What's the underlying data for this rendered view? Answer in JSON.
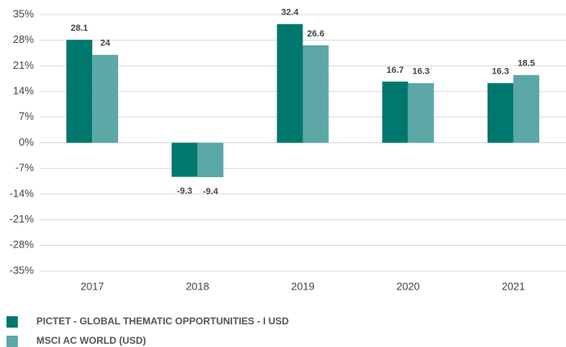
{
  "chart_data": {
    "type": "bar",
    "categories": [
      "2017",
      "2018",
      "2019",
      "2020",
      "2021"
    ],
    "series": [
      {
        "name": "PICTET - GLOBAL THEMATIC OPPORTUNITIES - I USD",
        "color": "#00776d",
        "values": [
          28.1,
          -9.3,
          32.4,
          16.7,
          16.3
        ]
      },
      {
        "name": "MSCI AC WORLD (USD)",
        "color": "#5ba8a7",
        "values": [
          24.0,
          -9.4,
          26.6,
          16.3,
          18.5
        ]
      }
    ],
    "ylim": [
      -35,
      35
    ],
    "yticks": [
      {
        "value": 35,
        "label": "35%"
      },
      {
        "value": 28,
        "label": "28%"
      },
      {
        "value": 21,
        "label": "21%"
      },
      {
        "value": 14,
        "label": "14%"
      },
      {
        "value": 7,
        "label": "7%"
      },
      {
        "value": 0,
        "label": "0%"
      },
      {
        "value": -7,
        "label": "-7%"
      },
      {
        "value": -14,
        "label": "-14%"
      },
      {
        "value": -21,
        "label": "-21%"
      },
      {
        "value": -28,
        "label": "-28%"
      },
      {
        "value": -35,
        "label": "-35%"
      }
    ],
    "grid": true
  }
}
